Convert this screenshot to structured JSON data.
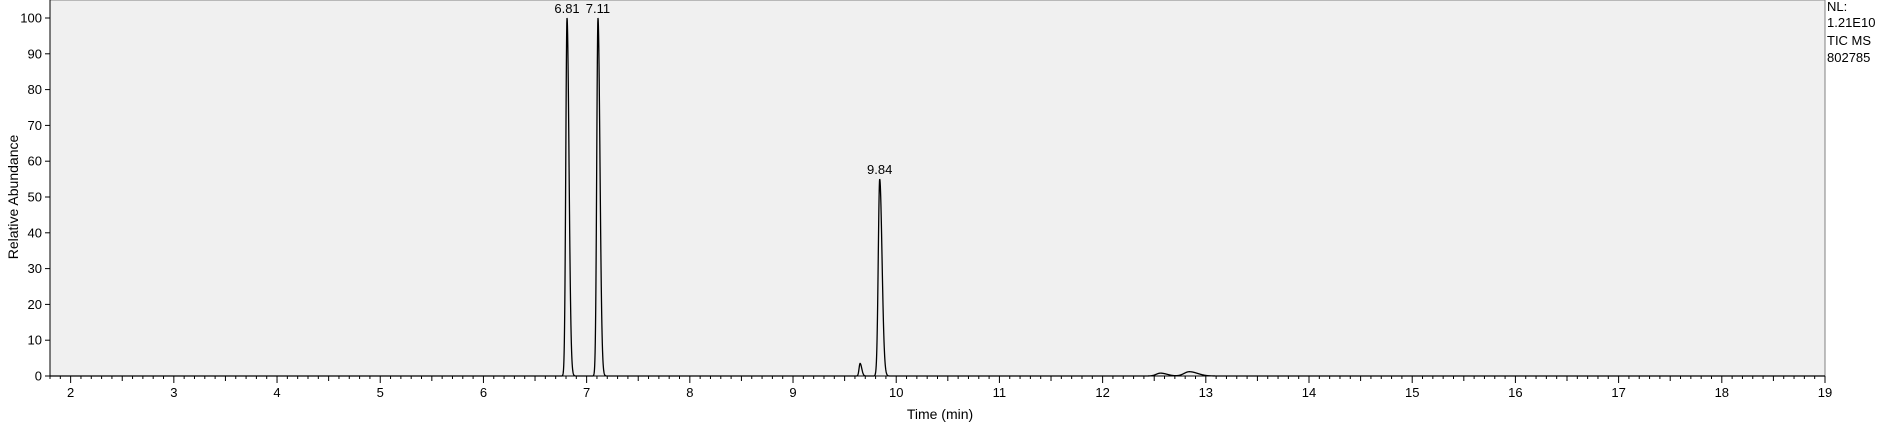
{
  "chart_data": {
    "type": "line",
    "xlabel": "Time (min)",
    "ylabel": "Relative Abundance",
    "xlim": [
      1.8,
      19.0
    ],
    "ylim": [
      0,
      100
    ],
    "x_ticks": [
      2,
      3,
      4,
      5,
      6,
      7,
      8,
      9,
      10,
      11,
      12,
      13,
      14,
      15,
      16,
      17,
      18,
      19
    ],
    "y_ticks": [
      0,
      10,
      20,
      30,
      40,
      50,
      60,
      70,
      80,
      90,
      100
    ],
    "grid": false,
    "line_color": "#000000",
    "plot_background": "#f0f0f0",
    "peaks": [
      {
        "rt": 6.81,
        "abundance": 100,
        "width": 0.012,
        "label": "6.81"
      },
      {
        "rt": 7.11,
        "abundance": 100,
        "width": 0.012,
        "label": "7.11"
      },
      {
        "rt": 9.65,
        "abundance": 3.5,
        "width": 0.01,
        "label": ""
      },
      {
        "rt": 9.84,
        "abundance": 55,
        "width": 0.014,
        "label": "9.84"
      },
      {
        "rt": 12.56,
        "abundance": 0.8,
        "width": 0.04,
        "label": ""
      },
      {
        "rt": 12.84,
        "abundance": 1.2,
        "width": 0.05,
        "label": ""
      }
    ],
    "info": [
      "NL:",
      "1.21E10",
      "TIC  MS",
      "802785"
    ]
  }
}
